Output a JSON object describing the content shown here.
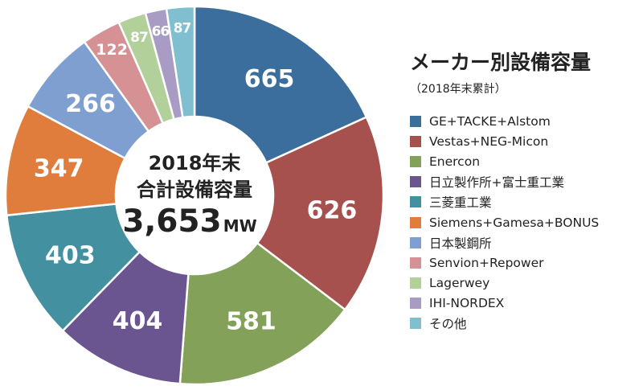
{
  "chart_data": {
    "type": "pie",
    "style": "donut",
    "title": "メーカー別設備容量",
    "subtitle": "（2018年末累計）",
    "center": {
      "line1": "2018年末",
      "line2": "合計設備容量",
      "total": "3,653",
      "unit": "MW"
    },
    "slices": [
      {
        "name": "GE+TACKE+Alstom",
        "value": 665,
        "color": "#3b6e9c"
      },
      {
        "name": "Vestas+NEG-Micon",
        "value": 626,
        "color": "#a6514e"
      },
      {
        "name": "Enercon",
        "value": 581,
        "color": "#83a158"
      },
      {
        "name": "日立製作所+富士重工業",
        "value": 404,
        "color": "#6b5590"
      },
      {
        "name": "三菱重工業",
        "value": 403,
        "color": "#4390a0"
      },
      {
        "name": "Siemens+Gamesa+BONUS",
        "value": 347,
        "color": "#e07d3c"
      },
      {
        "name": "日本製鋼所",
        "value": 266,
        "color": "#7f9fd0"
      },
      {
        "name": "Senvion+Repower",
        "value": 122,
        "color": "#d59193"
      },
      {
        "name": "Lagerwey",
        "value": 87,
        "color": "#b1d09a"
      },
      {
        "name": "IHI-NORDEX",
        "value": 66,
        "color": "#a89cc4"
      },
      {
        "name": "その他",
        "value": 87,
        "color": "#7fbfd0"
      }
    ],
    "legend_position": "right"
  }
}
